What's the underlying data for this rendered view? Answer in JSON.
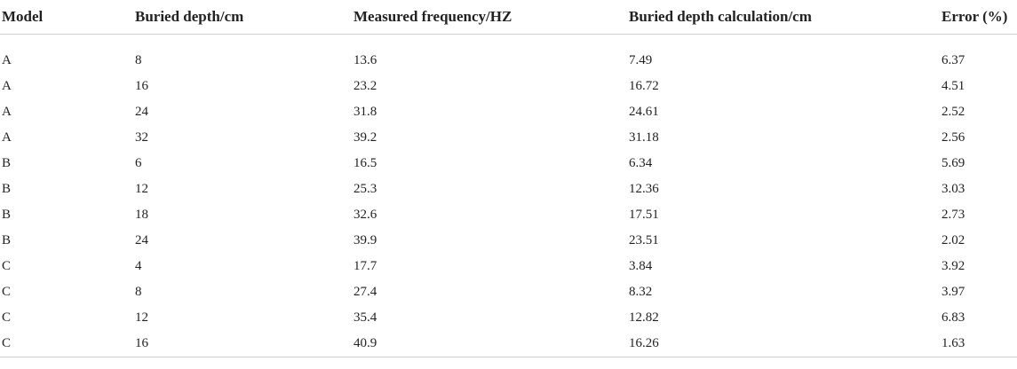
{
  "table": {
    "headers": [
      "Model",
      "Buried depth/cm",
      "Measured frequency/HZ",
      "Buried depth calculation/cm",
      "Error (%)"
    ],
    "rows": [
      [
        "A",
        "8",
        "13.6",
        "7.49",
        "6.37"
      ],
      [
        "A",
        "16",
        "23.2",
        "16.72",
        "4.51"
      ],
      [
        "A",
        "24",
        "31.8",
        "24.61",
        "2.52"
      ],
      [
        "A",
        "32",
        "39.2",
        "31.18",
        "2.56"
      ],
      [
        "B",
        "6",
        "16.5",
        "6.34",
        "5.69"
      ],
      [
        "B",
        "12",
        "25.3",
        "12.36",
        "3.03"
      ],
      [
        "B",
        "18",
        "32.6",
        "17.51",
        "2.73"
      ],
      [
        "B",
        "24",
        "39.9",
        "23.51",
        "2.02"
      ],
      [
        "C",
        "4",
        "17.7",
        "3.84",
        "3.92"
      ],
      [
        "C",
        "8",
        "27.4",
        "8.32",
        "3.97"
      ],
      [
        "C",
        "12",
        "35.4",
        "12.82",
        "6.83"
      ],
      [
        "C",
        "16",
        "40.9",
        "16.26",
        "1.63"
      ]
    ]
  }
}
